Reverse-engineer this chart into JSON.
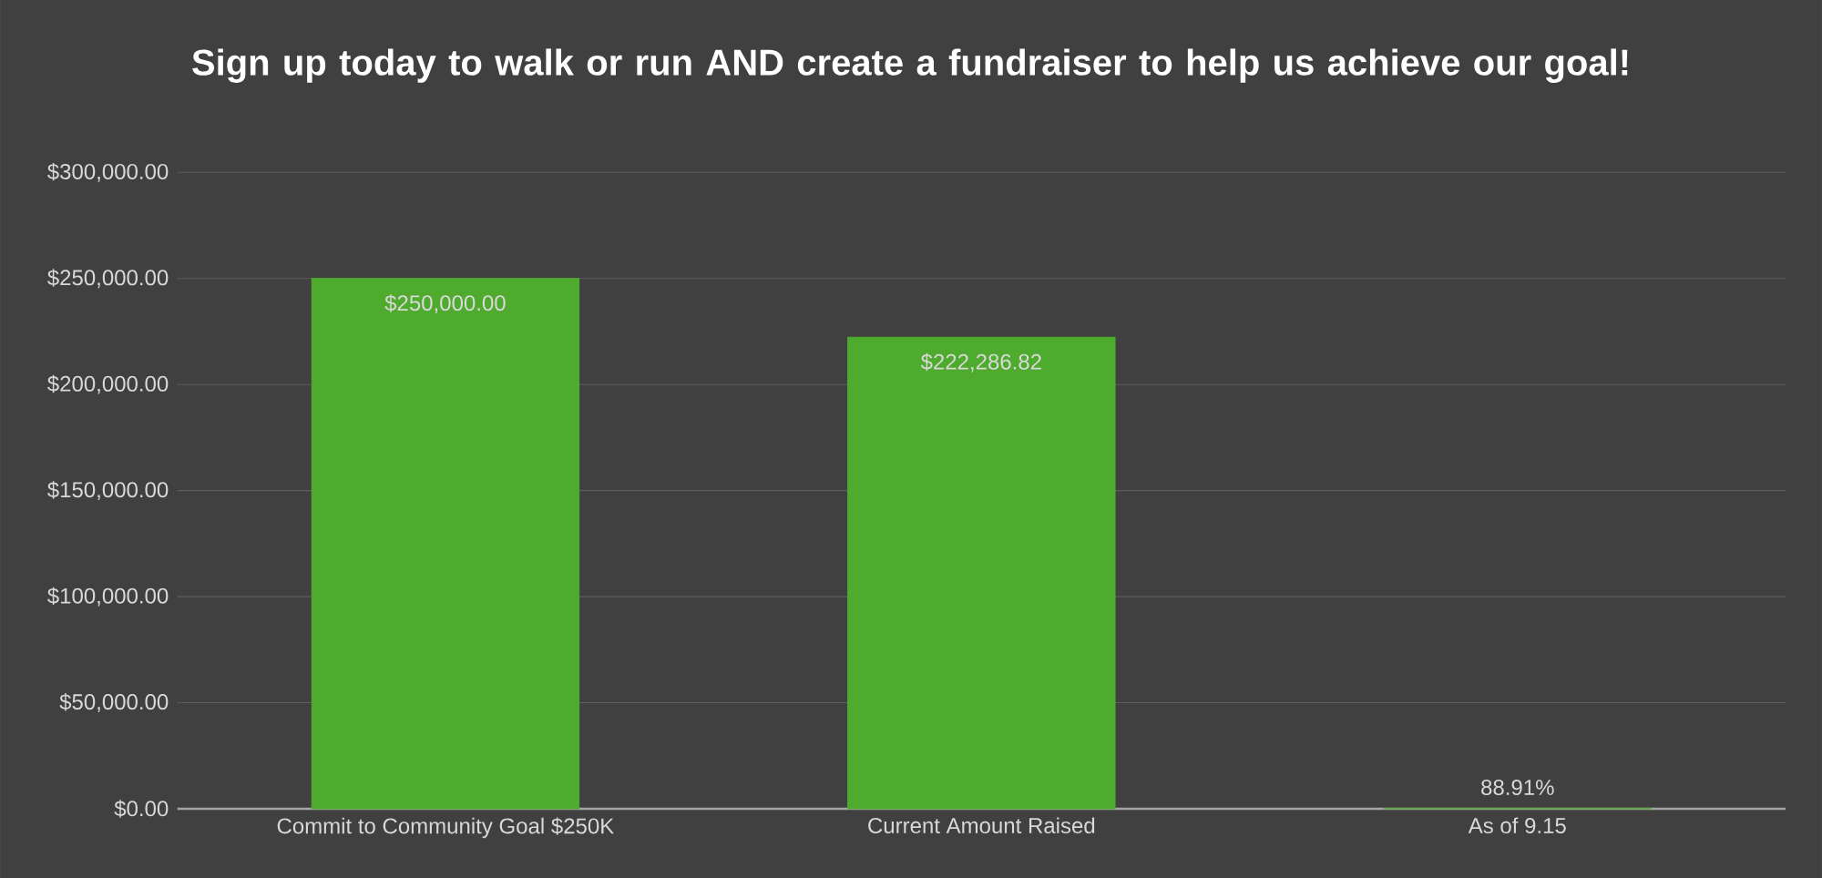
{
  "chart_data": {
    "type": "bar",
    "title": "Sign up today to walk or run AND create a fundraiser to help us achieve our goal!",
    "categories": [
      "Commit to Community Goal $250K",
      "Current Amount Raised",
      "As of 9.15"
    ],
    "values": [
      250000,
      222286.82,
      88.91
    ],
    "value_labels": [
      "$250,000.00",
      "$222,286.82",
      "88.91%"
    ],
    "color": "#4eab2e",
    "ylim": [
      0,
      300000
    ],
    "yticks": [
      {
        "value": 0,
        "label": "$0.00"
      },
      {
        "value": 50000,
        "label": "$50,000.00"
      },
      {
        "value": 100000,
        "label": "$100,000.00"
      },
      {
        "value": 150000,
        "label": "$150,000.00"
      },
      {
        "value": 200000,
        "label": "$200,000.00"
      },
      {
        "value": 250000,
        "label": "$250,000.00"
      },
      {
        "value": 300000,
        "label": "$300,000.00"
      }
    ],
    "grid": "y"
  }
}
